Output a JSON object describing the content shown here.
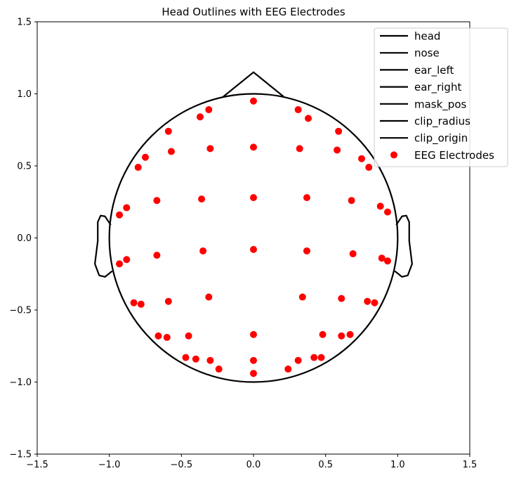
{
  "chart_data": {
    "type": "scatter",
    "title": "Head Outlines with EEG Electrodes",
    "xlabel": "",
    "ylabel": "",
    "xlim": [
      -1.5,
      1.5
    ],
    "ylim": [
      -1.5,
      1.5
    ],
    "xticks": [
      "−1.5",
      "−1.0",
      "−0.5",
      "0.0",
      "0.5",
      "1.0",
      "1.5"
    ],
    "yticks": [
      "−1.5",
      "−1.0",
      "−0.5",
      "0.0",
      "0.5",
      "1.0",
      "1.5"
    ],
    "grid": false,
    "legend_position": "top-right",
    "outline_color": "#000000",
    "electrode_color": "#ff0000",
    "outlines": {
      "head": {
        "name": "head",
        "center": [
          0,
          0
        ],
        "radius": 1.0
      },
      "nose": {
        "name": "nose",
        "points": [
          [
            -0.21,
            0.98
          ],
          [
            0.0,
            1.15
          ],
          [
            0.21,
            0.98
          ]
        ]
      },
      "ear_left": {
        "name": "ear_left",
        "points": [
          [
            -0.99,
            0.09
          ],
          [
            -1.03,
            0.15
          ],
          [
            -1.06,
            0.155
          ],
          [
            -1.08,
            0.11
          ],
          [
            -1.08,
            -0.02
          ],
          [
            -1.1,
            -0.18
          ],
          [
            -1.07,
            -0.26
          ],
          [
            -1.03,
            -0.27
          ],
          [
            -0.98,
            -0.23
          ]
        ]
      },
      "ear_right": {
        "name": "ear_right",
        "points": [
          [
            0.99,
            0.09
          ],
          [
            1.03,
            0.15
          ],
          [
            1.06,
            0.155
          ],
          [
            1.08,
            0.11
          ],
          [
            1.08,
            -0.02
          ],
          [
            1.1,
            -0.18
          ],
          [
            1.07,
            -0.26
          ],
          [
            1.03,
            -0.27
          ],
          [
            0.98,
            -0.23
          ]
        ]
      },
      "mask_pos": {
        "name": "mask_pos"
      },
      "clip_radius": {
        "name": "clip_radius"
      },
      "clip_origin": {
        "name": "clip_origin"
      }
    },
    "legend": [
      "head",
      "nose",
      "ear_left",
      "ear_right",
      "mask_pos",
      "clip_radius",
      "clip_origin",
      "EEG Electrodes"
    ],
    "series": [
      {
        "name": "EEG Electrodes",
        "points": [
          [
            0.0,
            0.95
          ],
          [
            -0.31,
            0.89
          ],
          [
            0.31,
            0.89
          ],
          [
            -0.37,
            0.84
          ],
          [
            0.38,
            0.83
          ],
          [
            -0.59,
            0.74
          ],
          [
            0.59,
            0.74
          ],
          [
            -0.57,
            0.6
          ],
          [
            -0.3,
            0.62
          ],
          [
            0.0,
            0.63
          ],
          [
            0.32,
            0.62
          ],
          [
            0.58,
            0.61
          ],
          [
            -0.75,
            0.56
          ],
          [
            0.75,
            0.55
          ],
          [
            -0.8,
            0.49
          ],
          [
            0.8,
            0.49
          ],
          [
            -0.67,
            0.26
          ],
          [
            -0.36,
            0.27
          ],
          [
            0.0,
            0.28
          ],
          [
            0.37,
            0.28
          ],
          [
            0.68,
            0.26
          ],
          [
            -0.88,
            0.21
          ],
          [
            0.88,
            0.22
          ],
          [
            -0.93,
            0.16
          ],
          [
            0.93,
            0.18
          ],
          [
            -0.67,
            -0.12
          ],
          [
            -0.35,
            -0.09
          ],
          [
            0.0,
            -0.08
          ],
          [
            0.37,
            -0.09
          ],
          [
            0.69,
            -0.11
          ],
          [
            -0.88,
            -0.15
          ],
          [
            0.89,
            -0.14
          ],
          [
            -0.93,
            -0.18
          ],
          [
            0.93,
            -0.16
          ],
          [
            -0.83,
            -0.45
          ],
          [
            -0.78,
            -0.46
          ],
          [
            -0.59,
            -0.44
          ],
          [
            -0.31,
            -0.41
          ],
          [
            0.34,
            -0.41
          ],
          [
            0.61,
            -0.42
          ],
          [
            0.79,
            -0.44
          ],
          [
            0.84,
            -0.45
          ],
          [
            -0.66,
            -0.68
          ],
          [
            -0.6,
            -0.69
          ],
          [
            -0.45,
            -0.68
          ],
          [
            0.0,
            -0.67
          ],
          [
            0.48,
            -0.67
          ],
          [
            0.61,
            -0.68
          ],
          [
            0.67,
            -0.67
          ],
          [
            -0.47,
            -0.83
          ],
          [
            -0.4,
            -0.84
          ],
          [
            -0.3,
            -0.85
          ],
          [
            0.0,
            -0.85
          ],
          [
            0.31,
            -0.85
          ],
          [
            0.42,
            -0.83
          ],
          [
            0.47,
            -0.83
          ],
          [
            -0.24,
            -0.91
          ],
          [
            0.0,
            -0.94
          ],
          [
            0.24,
            -0.91
          ]
        ]
      }
    ]
  }
}
